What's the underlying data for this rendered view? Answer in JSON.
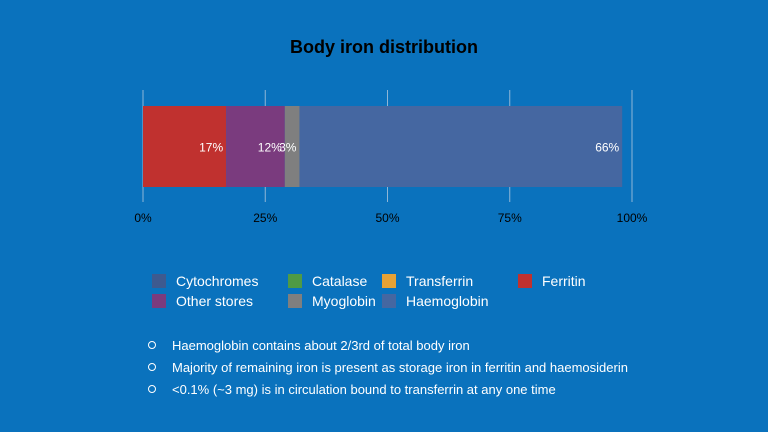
{
  "chart_data": {
    "type": "bar",
    "orientation": "horizontal",
    "stacked": true,
    "title": "Body iron distribution",
    "categories": [
      ""
    ],
    "series": [
      {
        "name": "Ferritin",
        "values": [
          17
        ],
        "label": "17%",
        "color": "#c0312f"
      },
      {
        "name": "Other stores",
        "values": [
          12
        ],
        "label": "12%",
        "color": "#7a3b7e"
      },
      {
        "name": "Myoglobin",
        "values": [
          3
        ],
        "label": "3%",
        "color": "#7f7f7f"
      },
      {
        "name": "Haemoglobin",
        "values": [
          66
        ],
        "label": "66%",
        "color": "#4567a1"
      }
    ],
    "xlim": [
      0,
      100
    ],
    "xticks": [
      "0%",
      "25%",
      "50%",
      "75%",
      "100%"
    ],
    "xtick_values": [
      0,
      25,
      50,
      75,
      100
    ],
    "grid": true,
    "legend_position": "bottom"
  },
  "legend": [
    {
      "label": "Cytochromes",
      "color": "#3e5a8f"
    },
    {
      "label": "Catalase",
      "color": "#4f9a45"
    },
    {
      "label": "Transferrin",
      "color": "#e8a235"
    },
    {
      "label": "Ferritin",
      "color": "#c0312f"
    },
    {
      "label": "Other stores",
      "color": "#7a3b7e"
    },
    {
      "label": "Myoglobin",
      "color": "#7f7f7f"
    },
    {
      "label": "Haemoglobin",
      "color": "#4567a1"
    }
  ],
  "notes": [
    "Haemoglobin contains about 2/3rd of total body iron",
    "Majority of remaining iron is present as storage iron in ferritin and haemosiderin",
    "<0.1% (~3 mg) is in circulation bound to transferrin at any one time"
  ],
  "colors": {
    "background": "#0a72bd",
    "text": "#ffffff"
  }
}
